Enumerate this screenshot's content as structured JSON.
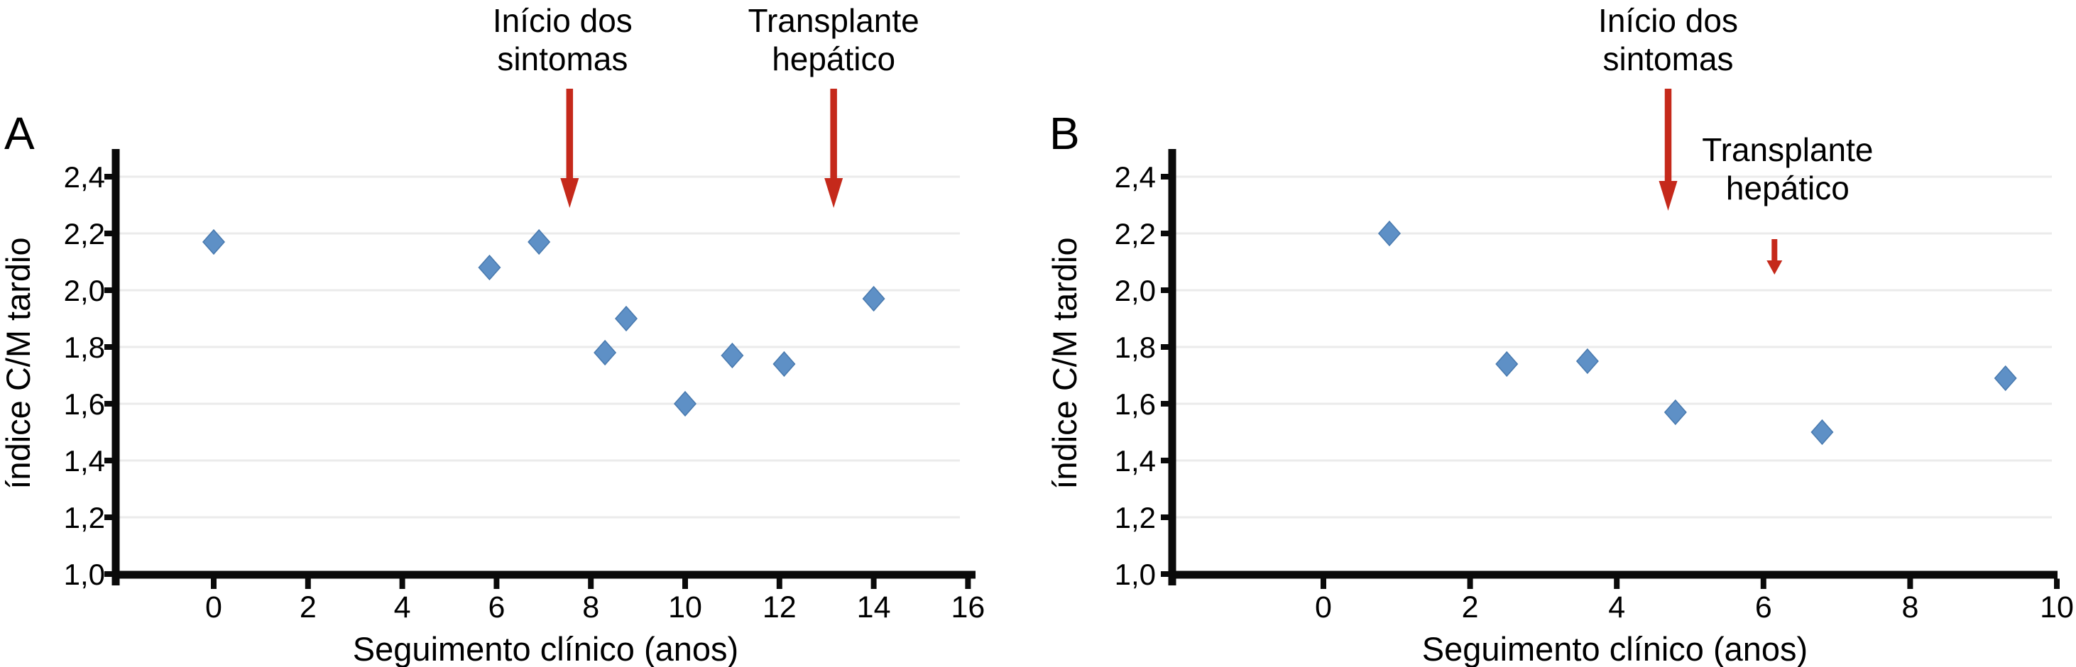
{
  "figure": {
    "colors": {
      "marker_fill": "#5e90c6",
      "marker_edge": "#4879ae",
      "annotation_red": "#c5291b",
      "gridline": "#ebebeb",
      "axis": "#0a0a0a",
      "background": "#ffffff"
    }
  },
  "chart_data": [
    {
      "panel_label": "A",
      "type": "scatter",
      "title": "",
      "xlabel": "Seguimento clínico (anos)",
      "ylabel": "índice C/M tardio",
      "xlim": [
        -2,
        16.2
      ],
      "ylim": [
        1.0,
        2.5
      ],
      "xticks": [
        0,
        2,
        4,
        6,
        8,
        10,
        12,
        14,
        16
      ],
      "ytick_values": [
        1.0,
        1.2,
        1.4,
        1.6,
        1.8,
        2.0,
        2.2,
        2.4
      ],
      "ytick_labels": [
        "1,0",
        "1,2",
        "1,4",
        "1,6",
        "1,8",
        "2,0",
        "2,2",
        "2,4"
      ],
      "grid": "horizontal-light",
      "legend": "none",
      "marker": "diamond",
      "points": [
        {
          "x": 0.0,
          "y": 2.17
        },
        {
          "x": 5.85,
          "y": 2.08
        },
        {
          "x": 6.9,
          "y": 2.17
        },
        {
          "x": 8.3,
          "y": 1.78
        },
        {
          "x": 8.75,
          "y": 1.9
        },
        {
          "x": 10.0,
          "y": 1.6
        },
        {
          "x": 11.0,
          "y": 1.77
        },
        {
          "x": 12.1,
          "y": 1.74
        },
        {
          "x": 14.0,
          "y": 1.97
        }
      ],
      "annotations": [
        {
          "text_lines": [
            "Início dos",
            "sintomas"
          ],
          "label_pos": "top",
          "label_x": 7.4,
          "arrow_x": 7.55,
          "arrow_y_from": 2.71,
          "arrow_y_to": 2.29
        },
        {
          "text_lines": [
            "Transplante",
            "hepático"
          ],
          "label_pos": "top",
          "label_x": 13.15,
          "arrow_x": 13.15,
          "arrow_y_from": 2.71,
          "arrow_y_to": 2.29
        }
      ]
    },
    {
      "panel_label": "B",
      "type": "scatter",
      "title": "",
      "xlabel": "Seguimento clínico (anos)",
      "ylabel": "índice C/M tardio",
      "xlim": [
        -2,
        10.15
      ],
      "ylim": [
        1.0,
        2.5
      ],
      "xticks": [
        0,
        2,
        4,
        6,
        8,
        10
      ],
      "ytick_values": [
        1.0,
        1.2,
        1.4,
        1.6,
        1.8,
        2.0,
        2.2,
        2.4
      ],
      "ytick_labels": [
        "1,0",
        "1,2",
        "1,4",
        "1,6",
        "1,8",
        "2,0",
        "2,2",
        "2,4"
      ],
      "grid": "horizontal-light",
      "legend": "none",
      "marker": "diamond",
      "points": [
        {
          "x": 0.9,
          "y": 2.2
        },
        {
          "x": 2.5,
          "y": 1.74
        },
        {
          "x": 3.6,
          "y": 1.75
        },
        {
          "x": 4.8,
          "y": 1.57
        },
        {
          "x": 6.8,
          "y": 1.5
        },
        {
          "x": 9.3,
          "y": 1.69
        }
      ],
      "annotations": [
        {
          "text_lines": [
            "Início dos",
            "sintomas"
          ],
          "label_pos": "top",
          "label_x": 4.7,
          "arrow_x": 4.7,
          "arrow_y_from": 2.71,
          "arrow_y_to": 2.28
        },
        {
          "text_lines": [
            "Transplante",
            "hepático"
          ],
          "label_pos": "inline",
          "label_x": 6.33,
          "label_y_lines": [
            2.455,
            2.32
          ],
          "arrow_x": 6.15,
          "arrow_y_from": 2.18,
          "arrow_y_to": 2.055
        }
      ]
    }
  ]
}
